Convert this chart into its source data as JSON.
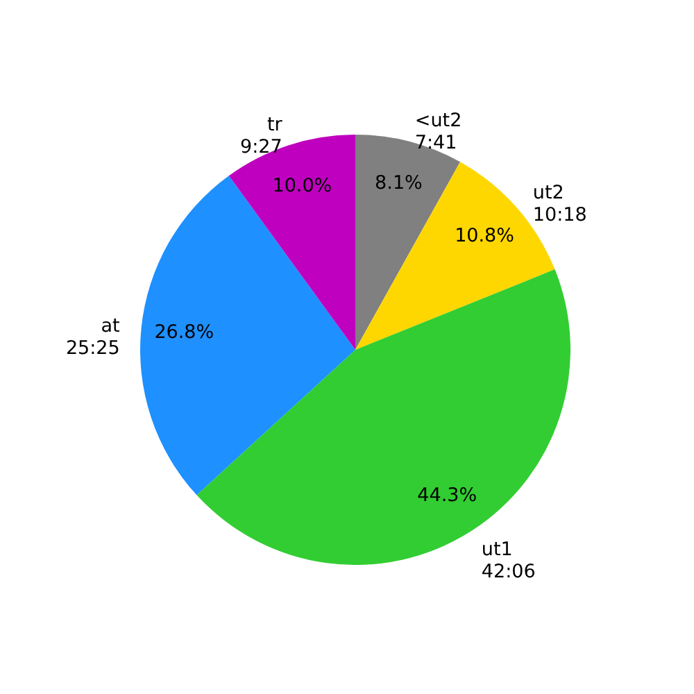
{
  "chart_data": {
    "type": "pie",
    "categories": [
      "<ut2\n7:41",
      "ut2\n10:18",
      "ut1\n42:06",
      "at\n25:25",
      "tr\n9:27"
    ],
    "values": [
      8.1,
      10.8,
      44.3,
      26.8,
      10.0
    ],
    "colors": [
      "#808080",
      "#ffd700",
      "#32cd32",
      "#1e90ff",
      "#bf00bf"
    ],
    "value_labels": [
      "8.1%",
      "10.8%",
      "44.3%",
      "26.8%",
      "10.0%"
    ]
  }
}
